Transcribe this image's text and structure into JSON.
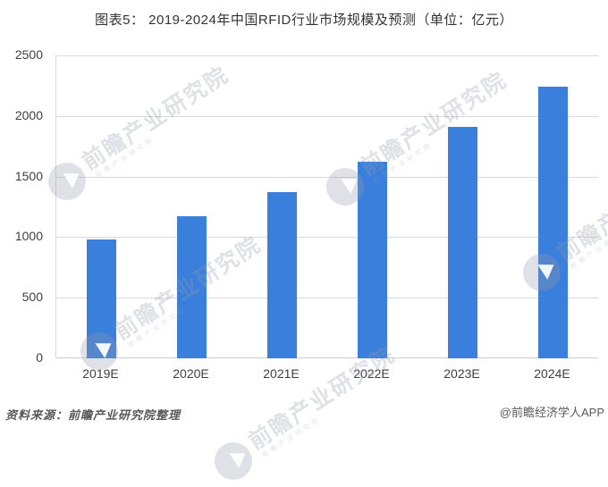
{
  "title": "图表5： 2019-2024年中国RFID行业市场规模及预测（单位：亿元）",
  "footer": {
    "source": "资料来源：前瞻产业研究院整理",
    "credit": "@前瞻经济学人APP"
  },
  "watermark": {
    "text": "前瞻产业研究院",
    "subtext": "前瞻产业研究院",
    "logo": "qianzhan-logo-icon"
  },
  "colors": {
    "bar": "#3b7fdc",
    "grid": "#d9d9d9",
    "axis_line": "#cfcfcf",
    "axis_text": "#3f3f3f",
    "title_text": "#333333",
    "footer_text": "#595959",
    "watermark": "rgba(150,156,172,0.30)"
  },
  "chart_data": {
    "type": "bar",
    "categories": [
      "2019E",
      "2020E",
      "2021E",
      "2022E",
      "2023E",
      "2024E"
    ],
    "values": [
      980,
      1170,
      1370,
      1620,
      1910,
      2240
    ],
    "title": "图表5： 2019-2024年中国RFID行业市场规模及预测（单位：亿元）",
    "xlabel": "",
    "ylabel": "",
    "unit": "亿元",
    "ylim": [
      0,
      2500
    ],
    "yticks": [
      0,
      500,
      1000,
      1500,
      2000,
      2500
    ],
    "grid": true,
    "legend": false,
    "bar_color": "#3b7fdc"
  }
}
